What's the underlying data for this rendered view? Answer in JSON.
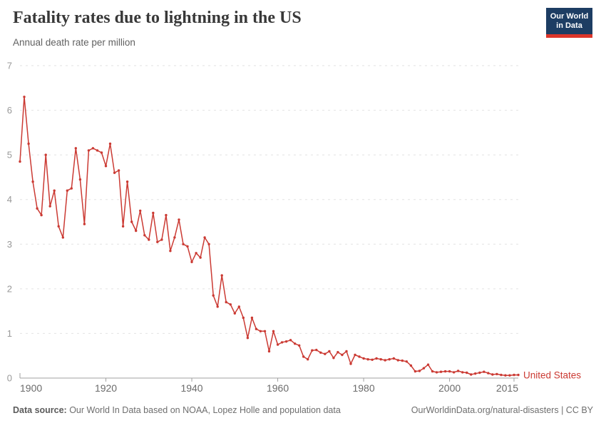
{
  "header": {
    "title": "Fatality rates due to lightning in the US",
    "subtitle": "Annual death rate per million",
    "logo": {
      "line1": "Our World",
      "line2": "in Data",
      "bg_color": "#1d3d63",
      "accent_color": "#dc352a"
    }
  },
  "chart_data": {
    "type": "line",
    "title": "Fatality rates due to lightning in the US",
    "xlabel": "",
    "ylabel": "Annual death rate per million",
    "xlim": [
      1900,
      2016
    ],
    "ylim": [
      0,
      7
    ],
    "grid": "dashed-horizontal",
    "legend_position": "end-of-line",
    "x_ticks": [
      1900,
      1920,
      1940,
      1960,
      1980,
      2000,
      2015
    ],
    "x_tick_labels": [
      "1900",
      "1920",
      "1940",
      "1960",
      "1980",
      "2000",
      "2015"
    ],
    "y_ticks": [
      0,
      1,
      2,
      3,
      4,
      5,
      6,
      7
    ],
    "colors": {
      "line": "#cb3a33",
      "grid": "#e2e2e2",
      "axis": "#a0a0a0",
      "x_tick_label": "#6b6b6b",
      "y_tick_label": "#999999"
    },
    "series": [
      {
        "name": "United States",
        "color": "#cb3a33",
        "x": [
          1900,
          1901,
          1902,
          1903,
          1904,
          1905,
          1906,
          1907,
          1908,
          1909,
          1910,
          1911,
          1912,
          1913,
          1914,
          1915,
          1916,
          1917,
          1918,
          1919,
          1920,
          1921,
          1922,
          1923,
          1924,
          1925,
          1926,
          1927,
          1928,
          1929,
          1930,
          1931,
          1932,
          1933,
          1934,
          1935,
          1936,
          1937,
          1938,
          1939,
          1940,
          1941,
          1942,
          1943,
          1944,
          1945,
          1946,
          1947,
          1948,
          1949,
          1950,
          1951,
          1952,
          1953,
          1954,
          1955,
          1956,
          1957,
          1958,
          1959,
          1960,
          1961,
          1962,
          1963,
          1964,
          1965,
          1966,
          1967,
          1968,
          1969,
          1970,
          1971,
          1972,
          1973,
          1974,
          1975,
          1976,
          1977,
          1978,
          1979,
          1980,
          1981,
          1982,
          1983,
          1984,
          1985,
          1986,
          1987,
          1988,
          1989,
          1990,
          1991,
          1992,
          1993,
          1994,
          1995,
          1996,
          1997,
          1998,
          1999,
          2000,
          2001,
          2002,
          2003,
          2004,
          2005,
          2006,
          2007,
          2008,
          2009,
          2010,
          2011,
          2012,
          2013,
          2014,
          2015,
          2016
        ],
        "values": [
          4.85,
          6.3,
          5.25,
          4.4,
          3.8,
          3.65,
          5.0,
          3.85,
          4.2,
          3.4,
          3.15,
          4.2,
          4.25,
          5.15,
          4.45,
          3.45,
          5.1,
          5.15,
          5.1,
          5.05,
          4.75,
          5.25,
          4.6,
          4.65,
          3.4,
          4.4,
          3.5,
          3.3,
          3.75,
          3.2,
          3.1,
          3.7,
          3.05,
          3.1,
          3.65,
          2.85,
          3.15,
          3.55,
          3.0,
          2.95,
          2.6,
          2.8,
          2.7,
          3.15,
          3.0,
          1.85,
          1.6,
          2.3,
          1.7,
          1.65,
          1.45,
          1.6,
          1.35,
          0.9,
          1.35,
          1.1,
          1.05,
          1.05,
          0.6,
          1.05,
          0.75,
          0.8,
          0.82,
          0.85,
          0.77,
          0.73,
          0.48,
          0.42,
          0.62,
          0.63,
          0.57,
          0.54,
          0.6,
          0.45,
          0.58,
          0.52,
          0.6,
          0.32,
          0.52,
          0.48,
          0.44,
          0.42,
          0.41,
          0.44,
          0.42,
          0.4,
          0.42,
          0.44,
          0.4,
          0.39,
          0.37,
          0.28,
          0.15,
          0.16,
          0.22,
          0.3,
          0.15,
          0.13,
          0.14,
          0.15,
          0.15,
          0.13,
          0.16,
          0.13,
          0.12,
          0.08,
          0.1,
          0.12,
          0.14,
          0.11,
          0.08,
          0.09,
          0.07,
          0.06,
          0.06,
          0.07,
          0.07
        ]
      }
    ]
  },
  "footer": {
    "source_prefix": "Data source:",
    "source_text": " Our World In Data based on NOAA, Lopez Holle and population data",
    "right_text": "OurWorldinData.org/natural-disasters | CC BY"
  }
}
